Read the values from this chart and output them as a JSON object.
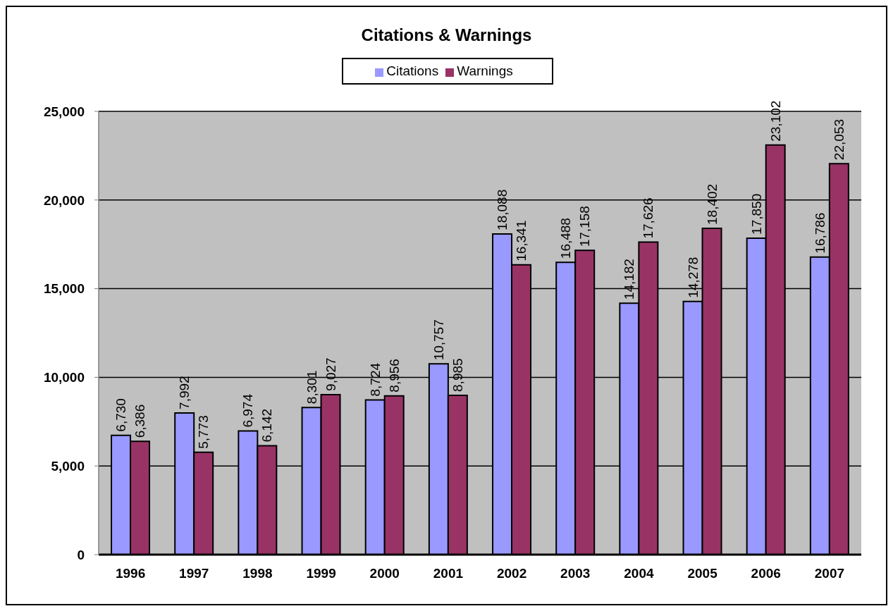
{
  "chart_data": {
    "type": "bar",
    "title": "Citations & Warnings",
    "categories": [
      "1996",
      "1997",
      "1998",
      "1999",
      "2000",
      "2001",
      "2002",
      "2003",
      "2004",
      "2005",
      "2006",
      "2007"
    ],
    "series": [
      {
        "name": "Citations",
        "color": "#9999ff",
        "values": [
          6730,
          7992,
          6974,
          8301,
          8724,
          10757,
          18088,
          16488,
          14182,
          14278,
          17850,
          16786
        ],
        "value_labels": [
          "6,730",
          "7,992",
          "6,974",
          "8,301",
          "8,724",
          "10,757",
          "18,088",
          "16,488",
          "14,182",
          "14,278",
          "17,850",
          "16,786"
        ]
      },
      {
        "name": "Warnings",
        "color": "#993366",
        "values": [
          6386,
          5773,
          6142,
          9027,
          8956,
          8985,
          16341,
          17158,
          17626,
          18402,
          23102,
          22053
        ],
        "value_labels": [
          "6,386",
          "5,773",
          "6,142",
          "9,027",
          "8,956",
          "8,985",
          "16,341",
          "17,158",
          "17,626",
          "18,402",
          "23,102",
          "22,053"
        ]
      }
    ],
    "ylim": [
      0,
      25000
    ],
    "yticks": [
      0,
      {
        "value": 5000,
        "label": "5,000"
      },
      {
        "value": 10000,
        "label": "10,000"
      },
      {
        "value": 15000,
        "label": "15,000"
      },
      {
        "value": 20000,
        "label": "20,000"
      },
      {
        "value": 25000,
        "label": "25,000"
      }
    ],
    "grid": "y",
    "legend": "top"
  }
}
